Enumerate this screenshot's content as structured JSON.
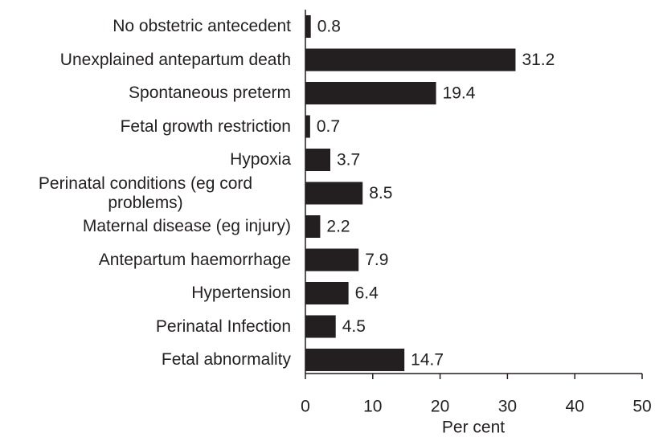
{
  "chart_data": {
    "type": "barh",
    "categories": [
      "No obstetric antecedent",
      "Unexplained antepartum death",
      "Spontaneous preterm",
      "Fetal growth restriction",
      "Hypoxia",
      "Perinatal conditions (eg cord problems)",
      "Maternal disease (eg injury)",
      "Antepartum haemorrhage",
      "Hypertension",
      "Perinatal Infection",
      "Fetal abnormality"
    ],
    "values": [
      0.8,
      31.2,
      19.4,
      0.7,
      3.7,
      8.5,
      2.2,
      7.9,
      6.4,
      4.5,
      14.7
    ],
    "color": "#231f20",
    "xlabel": "Per cent",
    "xlim": [
      0,
      50
    ],
    "xticks": [
      0,
      10,
      20,
      30,
      40,
      50
    ]
  }
}
